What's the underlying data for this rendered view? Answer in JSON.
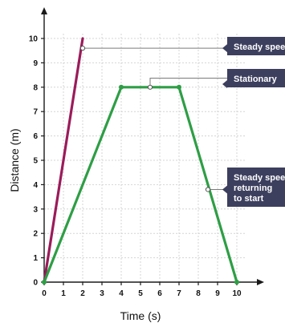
{
  "chart_data": {
    "type": "line",
    "xlabel": "Time (s)",
    "ylabel": "Distance (m)",
    "xlim": [
      0,
      10
    ],
    "ylim": [
      0,
      10
    ],
    "x_ticks": [
      0,
      1,
      2,
      3,
      4,
      5,
      6,
      7,
      8,
      9,
      10
    ],
    "y_ticks": [
      0,
      1,
      2,
      3,
      4,
      5,
      6,
      7,
      8,
      9,
      10
    ],
    "grid": true,
    "series": [
      {
        "color": "#9b1b5a",
        "x": [
          0,
          2
        ],
        "y": [
          0,
          10
        ]
      },
      {
        "color": "#2e9e45",
        "x": [
          0,
          4,
          7,
          10
        ],
        "y": [
          0,
          8,
          8,
          0
        ]
      }
    ],
    "annotations": [
      {
        "lines": [
          "Steady speed"
        ],
        "x": 2,
        "y": 9.6
      },
      {
        "lines": [
          "Stationary"
        ],
        "x": 5.5,
        "y": 8
      },
      {
        "lines": [
          "Steady speed",
          "returning",
          "to start"
        ],
        "x": 8.5,
        "y": 3.8
      }
    ],
    "callout_color": "#3d3f5e"
  }
}
